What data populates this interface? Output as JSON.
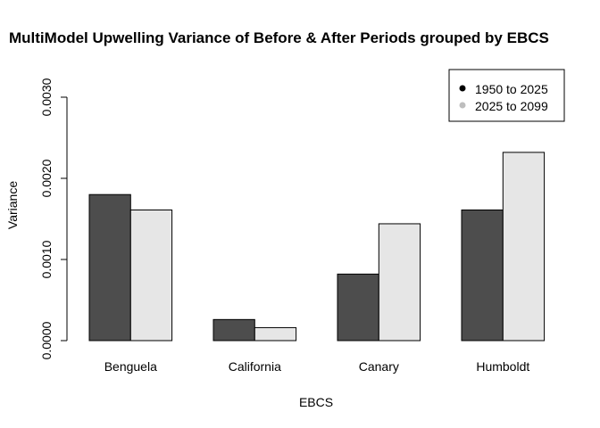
{
  "chart_data": {
    "type": "bar",
    "title": "MultiModel Upwelling Variance of Before & After Periods grouped by EBCS",
    "xlabel": "EBCS",
    "ylabel": "Variance",
    "categories": [
      "Benguela",
      "California",
      "Canary",
      "Humboldt"
    ],
    "ylim": [
      0,
      0.003
    ],
    "yticks": [
      "0.0000",
      "0.0010",
      "0.0020",
      "0.0030"
    ],
    "ytick_values": [
      0,
      0.001,
      0.002,
      0.003
    ],
    "series": [
      {
        "name": "1950 to 2025",
        "color": "#4d4d4d",
        "values": [
          0.0018,
          0.00026,
          0.00082,
          0.00161
        ]
      },
      {
        "name": "2025 to 2099",
        "color": "#e6e6e6",
        "values": [
          0.00161,
          0.00016,
          0.00144,
          0.00232
        ]
      }
    ],
    "legend": {
      "position": "top-right",
      "marker_colors": [
        "#000000",
        "#bebebe"
      ]
    },
    "grid": false
  }
}
